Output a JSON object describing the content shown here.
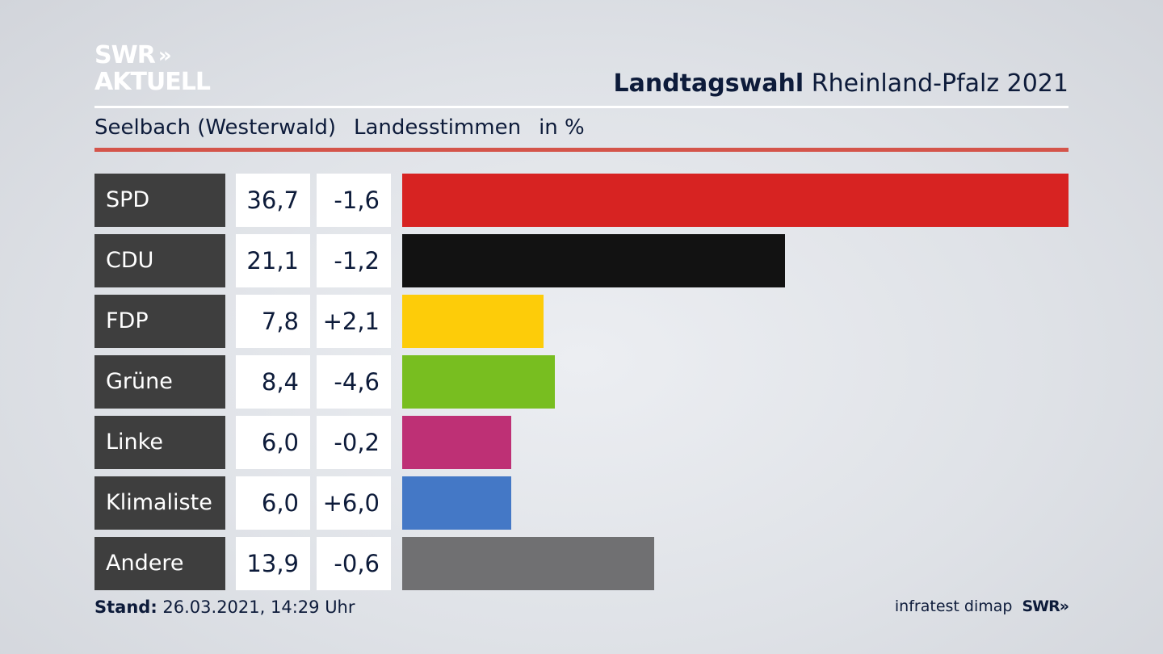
{
  "logo": {
    "line1": "SWR",
    "line2": "AKTUELL",
    "chevrons": "»"
  },
  "header": {
    "title_bold": "Landtagswahl",
    "title_rest": "Rheinland-Pfalz 2021"
  },
  "subheader": {
    "place": "Seelbach (Westerwald)",
    "type": "Landesstimmen",
    "unit": "in %"
  },
  "footer": {
    "stand_label": "Stand:",
    "stand_value": "26.03.2021, 14:29 Uhr",
    "source": "infratest dimap",
    "brand": "SWR»"
  },
  "chart_data": {
    "type": "bar",
    "orientation": "horizontal",
    "categories": [
      "SPD",
      "CDU",
      "FDP",
      "Grüne",
      "Linke",
      "Klimaliste",
      "Andere"
    ],
    "values": [
      36.7,
      21.1,
      7.8,
      8.4,
      6.0,
      6.0,
      13.9
    ],
    "value_labels": [
      "36,7",
      "21,1",
      "7,8",
      "8,4",
      "6,0",
      "6,0",
      "13,9"
    ],
    "changes": [
      -1.6,
      -1.2,
      2.1,
      -4.6,
      -0.2,
      6.0,
      -0.6
    ],
    "change_labels": [
      "-1,6",
      "-1,2",
      "+2,1",
      "-4,6",
      "-0,2",
      "+6,0",
      "-0,6"
    ],
    "colors": [
      "#d72322",
      "#121212",
      "#fdcc09",
      "#78be20",
      "#be3075",
      "#4478c6",
      "#707072"
    ],
    "xlim": [
      0,
      36.7
    ]
  }
}
